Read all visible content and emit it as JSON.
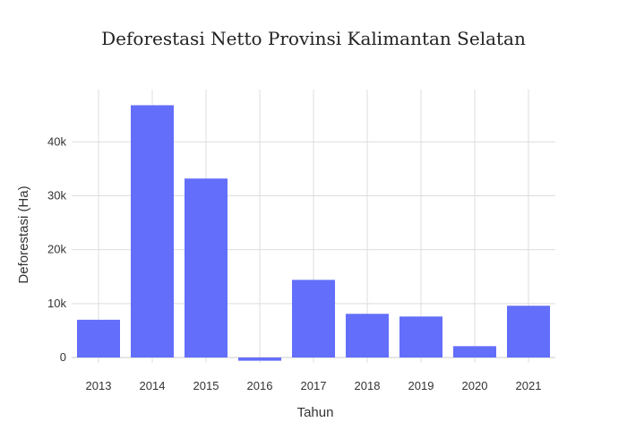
{
  "chart_data": {
    "type": "bar",
    "title": "Deforestasi Netto Provinsi Kalimantan Selatan",
    "xlabel": "Tahun",
    "ylabel": "Deforestasi (Ha)",
    "categories": [
      "2013",
      "2014",
      "2015",
      "2016",
      "2017",
      "2018",
      "2019",
      "2020",
      "2021"
    ],
    "values": [
      7000,
      46800,
      33200,
      -600,
      14400,
      8100,
      7600,
      2100,
      9600
    ],
    "ylim": [
      -1000,
      49700
    ],
    "yticks": [
      0,
      10000,
      20000,
      30000,
      40000
    ],
    "ytick_labels": [
      "0",
      "10k",
      "20k",
      "30k",
      "40k"
    ],
    "grid": true,
    "legend": "none",
    "bar_color": "#636efa"
  }
}
